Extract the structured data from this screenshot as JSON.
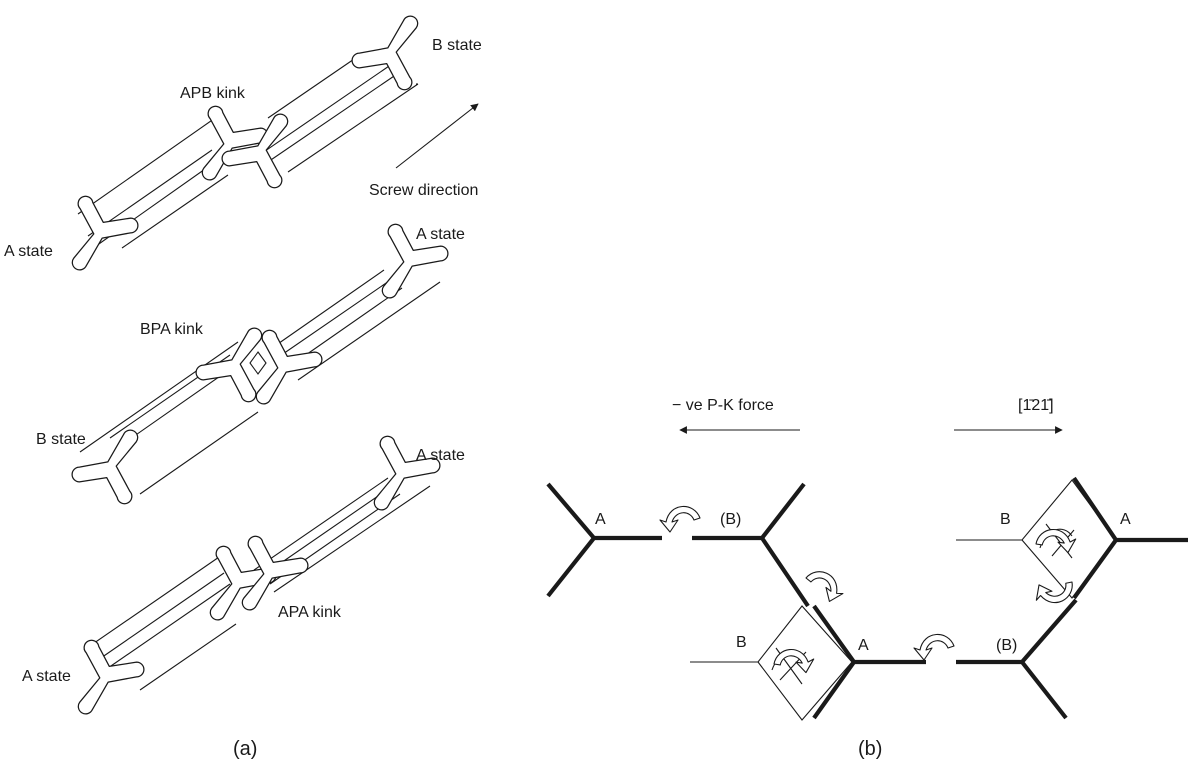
{
  "panel_a": {
    "caption": "(a)",
    "dislocation_top": {
      "kink_label": "APB kink",
      "left_state": "A state",
      "right_state": "B state"
    },
    "dislocation_middle": {
      "kink_label": "BPA kink",
      "left_state": "B state",
      "right_state": "A state"
    },
    "dislocation_bottom": {
      "kink_label": "APA kink",
      "left_state": "A state",
      "right_state": "A state"
    },
    "screw_direction_label": "Screw direction"
  },
  "panel_b": {
    "caption": "(b)",
    "force_label": "− ve P-K force",
    "direction_label": "[1̄21̄]",
    "upper_left_core": {
      "label_a": "A",
      "label_b": "(B)"
    },
    "upper_right_core": {
      "label_b": "B",
      "label_a": "A"
    },
    "lower_core": {
      "label_b": "B",
      "label_a": "A",
      "label_b_paren": "(B)"
    }
  }
}
